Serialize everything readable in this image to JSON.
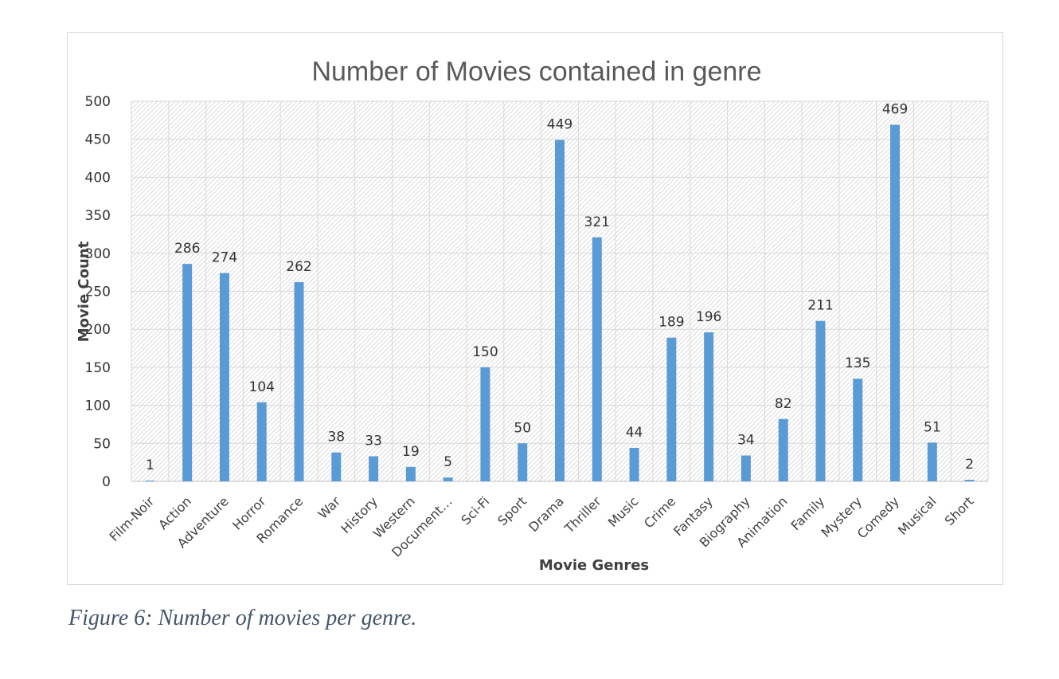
{
  "caption": "Figure 6: Number of movies per genre.",
  "chart_data": {
    "type": "bar",
    "title": "Number of Movies contained in genre",
    "xlabel": "Movie Genres",
    "ylabel": "Movie Count",
    "ylim": [
      0,
      500
    ],
    "yticks": [
      0,
      50,
      100,
      150,
      200,
      250,
      300,
      350,
      400,
      450,
      500
    ],
    "grid": true,
    "bar_color": "#5b9bd5",
    "categories": [
      "Film-Noir",
      "Action",
      "Adventure",
      "Horror",
      "Romance",
      "War",
      "History",
      "Western",
      "Document…",
      "Sci-Fi",
      "Sport",
      "Drama",
      "Thriller",
      "Music",
      "Crime",
      "Fantasy",
      "Biography",
      "Animation",
      "Family",
      "Mystery",
      "Comedy",
      "Musical",
      "Short"
    ],
    "values": [
      1,
      286,
      274,
      104,
      262,
      38,
      33,
      19,
      5,
      150,
      50,
      449,
      321,
      44,
      189,
      196,
      34,
      82,
      211,
      135,
      469,
      51,
      2
    ]
  }
}
